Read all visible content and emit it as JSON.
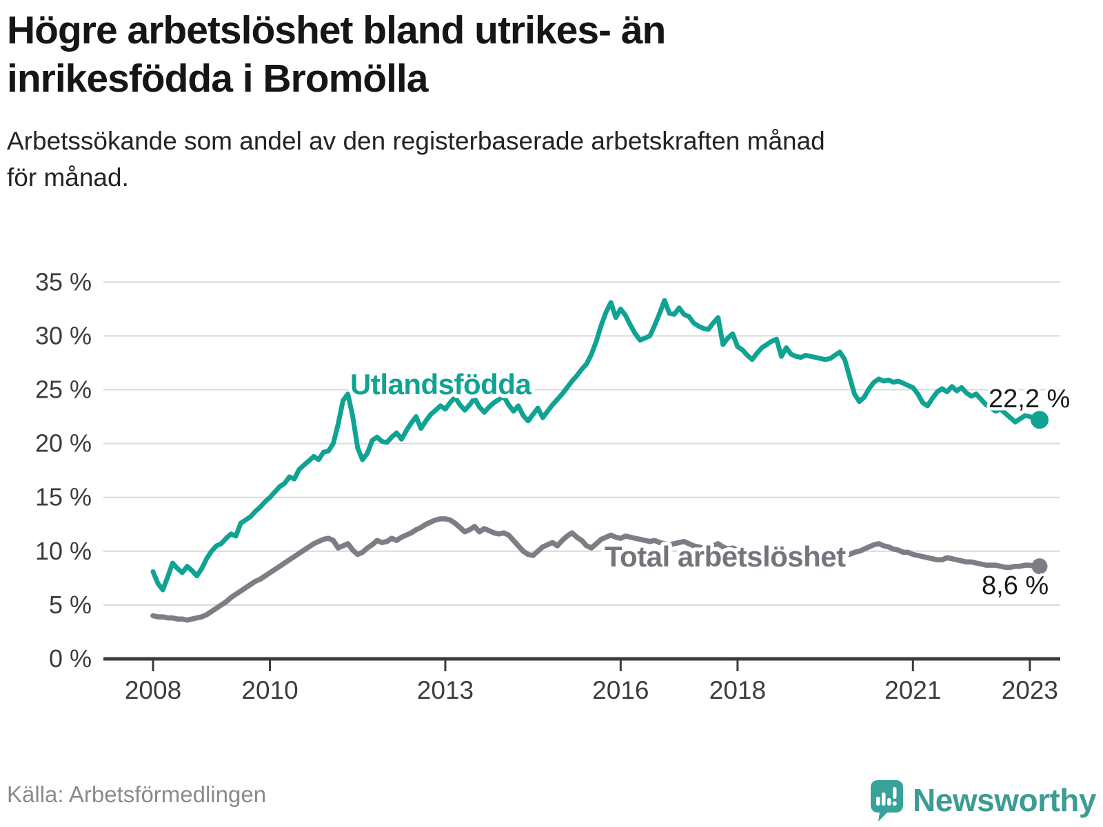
{
  "header": {
    "title": "Högre arbetslöshet bland utrikes- än inrikesfödda i Bromölla",
    "subtitle_line1": "Arbetssökande som andel av den registerbaserade arbetskraften månad",
    "subtitle_line2": "för månad."
  },
  "chart_data": {
    "type": "line",
    "unit": "percent",
    "frequency": "monthly",
    "x_start": "2008-01",
    "x_end": "2023-03",
    "ylim": [
      0,
      35
    ],
    "grid": true,
    "y_tick_values": [
      0,
      5,
      10,
      15,
      20,
      25,
      30,
      35
    ],
    "y_tick_labels": [
      "0 %",
      "5 %",
      "10 %",
      "15 %",
      "20 %",
      "25 %",
      "30 %",
      "35 %"
    ],
    "x_tick_years": [
      2008,
      2010,
      2013,
      2016,
      2018,
      2021,
      2023
    ],
    "x_tick_labels": [
      "2008",
      "2010",
      "2013",
      "2016",
      "2018",
      "2021",
      "2023"
    ],
    "series": [
      {
        "name": "Total arbetslöshet",
        "color": "#7d7d85",
        "end_label": "8,6 %",
        "last_value": 8.6,
        "values": [
          4.0,
          3.9,
          3.9,
          3.8,
          3.8,
          3.7,
          3.7,
          3.6,
          3.7,
          3.8,
          3.9,
          4.1,
          4.4,
          4.7,
          5.0,
          5.3,
          5.7,
          6.0,
          6.3,
          6.6,
          6.9,
          7.2,
          7.4,
          7.7,
          8.0,
          8.3,
          8.6,
          8.9,
          9.2,
          9.5,
          9.8,
          10.1,
          10.4,
          10.7,
          10.9,
          11.1,
          11.2,
          11.0,
          10.3,
          10.5,
          10.7,
          10.1,
          9.7,
          9.9,
          10.3,
          10.6,
          11.0,
          10.8,
          10.9,
          11.2,
          11.0,
          11.3,
          11.5,
          11.7,
          12.0,
          12.2,
          12.5,
          12.7,
          12.9,
          13.0,
          13.0,
          12.9,
          12.6,
          12.2,
          11.8,
          12.0,
          12.3,
          11.8,
          12.1,
          11.9,
          11.7,
          11.6,
          11.7,
          11.5,
          11.0,
          10.5,
          10.0,
          9.7,
          9.6,
          10.0,
          10.4,
          10.6,
          10.8,
          10.5,
          11.0,
          11.4,
          11.7,
          11.3,
          11.0,
          10.5,
          10.3,
          10.7,
          11.1,
          11.3,
          11.5,
          11.3,
          11.2,
          11.4,
          11.3,
          11.2,
          11.1,
          11.0,
          10.9,
          11.0,
          10.8,
          10.7,
          10.6,
          10.7,
          10.8,
          10.9,
          10.7,
          10.5,
          10.4,
          10.3,
          10.4,
          10.5,
          10.7,
          10.4,
          10.2,
          10.3,
          10.1,
          10.0,
          9.9,
          9.8,
          9.9,
          10.0,
          10.1,
          10.0,
          9.9,
          9.7,
          9.8,
          9.6,
          9.6,
          9.5,
          9.6,
          9.7,
          9.6,
          9.5,
          9.4,
          9.5,
          9.7,
          9.9,
          9.8,
          9.7,
          9.9,
          10.0,
          10.2,
          10.4,
          10.6,
          10.7,
          10.5,
          10.4,
          10.2,
          10.1,
          9.9,
          9.9,
          9.7,
          9.6,
          9.5,
          9.4,
          9.3,
          9.2,
          9.2,
          9.4,
          9.3,
          9.2,
          9.1,
          9.0,
          9.0,
          8.9,
          8.8,
          8.7,
          8.7,
          8.7,
          8.6,
          8.5,
          8.5,
          8.6,
          8.6,
          8.7,
          8.7,
          8.6,
          8.6
        ]
      },
      {
        "name": "Utlandsfödda",
        "color": "#10a394",
        "end_label": "22,2 %",
        "last_value": 22.2,
        "values": [
          8.1,
          7.0,
          6.4,
          7.6,
          8.9,
          8.4,
          8.0,
          8.6,
          8.2,
          7.7,
          8.4,
          9.3,
          10.0,
          10.5,
          10.7,
          11.2,
          11.6,
          11.4,
          12.6,
          12.9,
          13.2,
          13.7,
          14.1,
          14.6,
          15.0,
          15.5,
          16.0,
          16.3,
          16.9,
          16.7,
          17.6,
          18.0,
          18.4,
          18.8,
          18.5,
          19.2,
          19.3,
          20.0,
          21.8,
          24.0,
          24.6,
          22.5,
          19.6,
          18.5,
          19.1,
          20.3,
          20.6,
          20.2,
          20.1,
          20.6,
          21.0,
          20.4,
          21.2,
          21.9,
          22.5,
          21.4,
          22.1,
          22.7,
          23.1,
          23.5,
          23.2,
          23.8,
          24.3,
          23.6,
          23.1,
          23.6,
          24.2,
          23.4,
          22.9,
          23.4,
          23.8,
          24.1,
          24.4,
          23.6,
          23.0,
          23.5,
          22.6,
          22.1,
          22.7,
          23.3,
          22.4,
          23.0,
          23.6,
          24.1,
          24.6,
          25.2,
          25.8,
          26.3,
          26.9,
          27.4,
          28.3,
          29.5,
          31.0,
          32.2,
          33.1,
          31.7,
          32.5,
          31.9,
          31.0,
          30.2,
          29.6,
          29.8,
          30.0,
          31.0,
          32.1,
          33.3,
          32.1,
          32.0,
          32.6,
          32.0,
          31.8,
          31.2,
          30.9,
          30.7,
          30.6,
          31.2,
          31.7,
          29.2,
          29.8,
          30.2,
          29.0,
          28.7,
          28.2,
          27.8,
          28.4,
          28.9,
          29.2,
          29.5,
          29.7,
          28.1,
          28.9,
          28.3,
          28.1,
          28.0,
          28.2,
          28.1,
          28.0,
          27.9,
          27.8,
          27.9,
          28.2,
          28.5,
          27.8,
          26.2,
          24.6,
          23.9,
          24.3,
          25.1,
          25.7,
          26.0,
          25.8,
          25.9,
          25.7,
          25.8,
          25.6,
          25.4,
          25.2,
          24.6,
          23.8,
          23.5,
          24.2,
          24.8,
          25.1,
          24.8,
          25.3,
          24.9,
          25.2,
          24.7,
          24.4,
          24.6,
          24.1,
          23.6,
          23.3,
          23.0,
          23.2,
          22.8,
          22.4,
          22.0,
          22.3,
          22.6,
          22.5,
          22.3,
          22.2
        ]
      }
    ]
  },
  "footer": {
    "source": "Källa: Arbetsförmedlingen",
    "brand": "Newsworthy"
  }
}
